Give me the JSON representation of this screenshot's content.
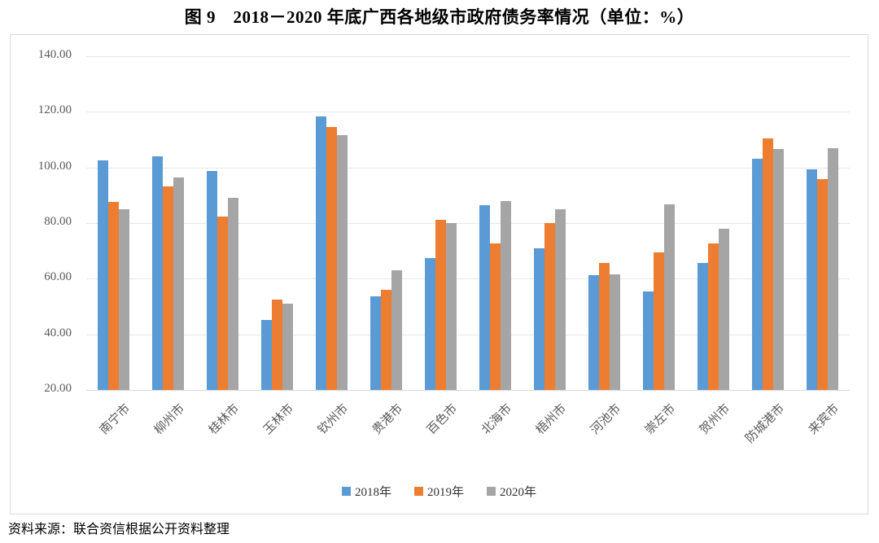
{
  "title": "图 9　2018－2020 年底广西各地级市政府债务率情况（单位：%）",
  "source": "资料来源：联合资信根据公开资料整理",
  "chart_data": {
    "type": "bar",
    "title": "图 9　2018－2020 年底广西各地级市政府债务率情况（单位：%）",
    "categories": [
      "南宁市",
      "柳州市",
      "桂林市",
      "玉林市",
      "钦州市",
      "贵港市",
      "百色市",
      "北海市",
      "梧州市",
      "河池市",
      "崇左市",
      "贺州市",
      "防城港市",
      "来宾市"
    ],
    "series": [
      {
        "name": "2018年",
        "color": "#5B9BD5",
        "values": [
          102.5,
          104.1,
          98.7,
          45.3,
          118.4,
          53.7,
          67.5,
          86.5,
          70.8,
          61.3,
          55.5,
          65.7,
          103.1,
          99.4
        ]
      },
      {
        "name": "2019年",
        "color": "#ED7D31",
        "values": [
          87.7,
          93.3,
          82.3,
          52.5,
          114.6,
          56.0,
          81.1,
          72.8,
          79.9,
          65.7,
          69.4,
          72.8,
          110.3,
          95.8
        ]
      },
      {
        "name": "2020年",
        "color": "#A5A5A5",
        "values": [
          85.0,
          96.3,
          89.2,
          51.1,
          111.5,
          63.0,
          80.0,
          88.0,
          85.0,
          61.7,
          86.6,
          77.9,
          106.6,
          107.0
        ]
      }
    ],
    "xlabel": "",
    "ylabel": "",
    "ylim": [
      20,
      140
    ],
    "ytick_step": 20,
    "ytick_labels": [
      "20.00",
      "40.00",
      "60.00",
      "80.00",
      "100.00",
      "120.00",
      "140.00"
    ],
    "grid": true,
    "legend_position": "bottom"
  },
  "colors": {
    "grid": "#e7e7e7",
    "border": "#d9d9d9",
    "axis_text": "#595959"
  }
}
